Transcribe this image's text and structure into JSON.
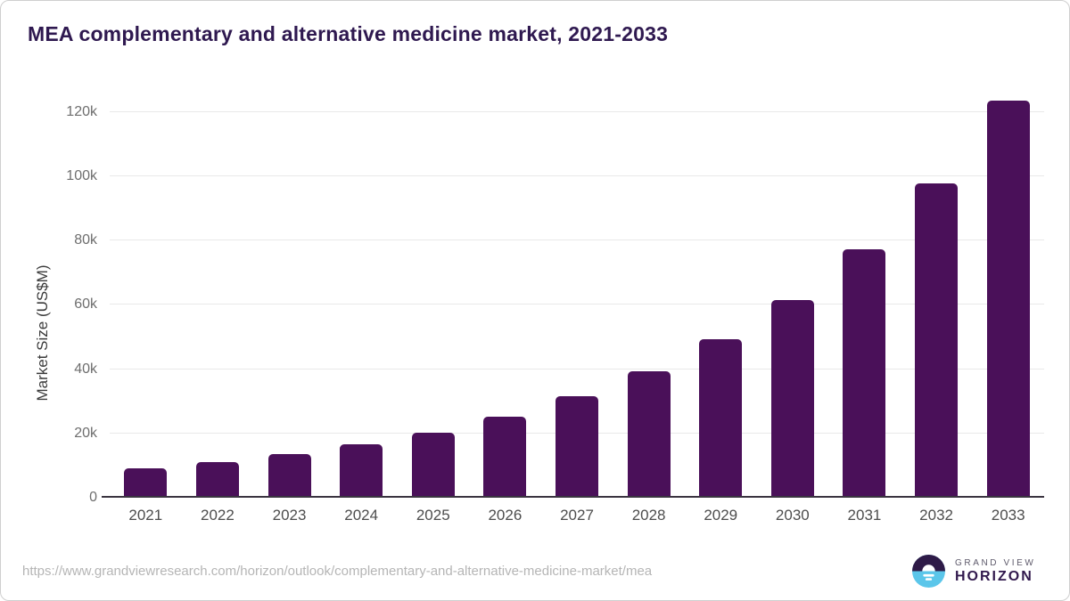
{
  "chart_data": {
    "type": "bar",
    "title": "MEA complementary and alternative medicine market, 2021-2033",
    "ylabel": "Market Size (US$M)",
    "xlabel": "",
    "categories": [
      "2021",
      "2022",
      "2023",
      "2024",
      "2025",
      "2026",
      "2027",
      "2028",
      "2029",
      "2030",
      "2031",
      "2032",
      "2033"
    ],
    "values": [
      9200,
      11100,
      13600,
      16600,
      20300,
      25300,
      31500,
      39300,
      49200,
      61600,
      77400,
      97700,
      123500
    ],
    "ylim": [
      0,
      126900
    ],
    "yticks": [
      {
        "value": 0,
        "label": "0"
      },
      {
        "value": 20000,
        "label": "20k"
      },
      {
        "value": 40000,
        "label": "40k"
      },
      {
        "value": 60000,
        "label": "60k"
      },
      {
        "value": 80000,
        "label": "80k"
      },
      {
        "value": 100000,
        "label": "100k"
      },
      {
        "value": 120000,
        "label": "120k"
      }
    ],
    "grid": true,
    "legend": false
  },
  "footer": {
    "source_url": "https://www.grandviewresearch.com/horizon/outlook/complementary-and-alternative-medicine-market/mea",
    "logo": {
      "line1": "GRAND VIEW",
      "line2": "HORIZON",
      "icon": "sunset-horizon-icon"
    }
  },
  "colors": {
    "bar": "#4a1059",
    "title": "#2f1950",
    "grid": "#e9e9e9",
    "axis": "#3a3440",
    "ytick": "#6e6e6e",
    "xlabel": "#4d4d4d",
    "url": "#b5b5b5",
    "logo_purple": "#2e1a47",
    "logo_blue": "#5bc6ea"
  }
}
